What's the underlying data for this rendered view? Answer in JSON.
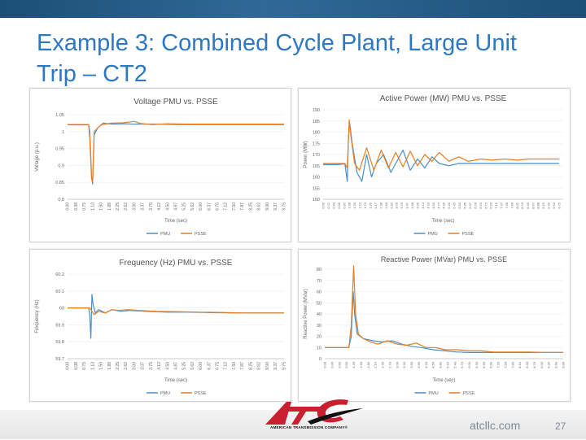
{
  "slide": {
    "title": "Example 3: Combined Cycle Plant, Large Unit Trip – CT2",
    "footer_site": "atcllc.com",
    "page_number": "27",
    "logo_text": "AMERICAN TRANSMISSION COMPANY®"
  },
  "colors": {
    "pmu": "#4a8fc9",
    "psse": "#e67e22",
    "title": "#2e78c2",
    "topbar": "#1c4f78",
    "logo_red": "#c8202f"
  },
  "icons": [
    "atc-logo"
  ],
  "chart_data": [
    {
      "type": "line",
      "title": "Voltage PMU vs. PSSE",
      "xlabel": "Time (sec)",
      "ylabel": "Voltage (p.u.)",
      "ylim": [
        0.8,
        1.05
      ],
      "yticks": [
        "0.8",
        "0.85",
        "0.9",
        "0.95",
        "1",
        "1.05"
      ],
      "xlim": [
        0,
        9.75
      ],
      "xticks": [
        "0.00",
        "0.38",
        "0.75",
        "1.13",
        "1.50",
        "1.88",
        "2.25",
        "2.62",
        "3.00",
        "3.37",
        "3.75",
        "4.12",
        "4.50",
        "4.87",
        "5.25",
        "5.62",
        "6.00",
        "6.37",
        "6.75",
        "7.12",
        "7.50",
        "7.87",
        "8.25",
        "8.62",
        "9.00",
        "9.37",
        "9.75"
      ],
      "legend_position": "bottom",
      "series": [
        {
          "name": "PMU",
          "points": [
            [
              0,
              1.02
            ],
            [
              0.5,
              1.02
            ],
            [
              0.95,
              1.02
            ],
            [
              1.0,
              1.0
            ],
            [
              1.08,
              0.87
            ],
            [
              1.13,
              0.845
            ],
            [
              1.2,
              0.99
            ],
            [
              1.35,
              1.01
            ],
            [
              1.6,
              1.025
            ],
            [
              2.0,
              1.022
            ],
            [
              2.5,
              1.023
            ],
            [
              3.0,
              1.022
            ],
            [
              4,
              1.022
            ],
            [
              5,
              1.021
            ],
            [
              6,
              1.021
            ],
            [
              7,
              1.021
            ],
            [
              8,
              1.021
            ],
            [
              9,
              1.021
            ],
            [
              9.75,
              1.021
            ]
          ]
        },
        {
          "name": "PSSE",
          "points": [
            [
              0,
              1.021
            ],
            [
              0.95,
              1.021
            ],
            [
              1.0,
              0.98
            ],
            [
              1.08,
              0.86
            ],
            [
              1.13,
              0.85
            ],
            [
              1.2,
              1.0
            ],
            [
              1.5,
              1.02
            ],
            [
              2.0,
              1.025
            ],
            [
              2.5,
              1.026
            ],
            [
              3.0,
              1.03
            ],
            [
              3.3,
              1.024
            ],
            [
              3.8,
              1.021
            ],
            [
              4.5,
              1.023
            ],
            [
              5.5,
              1.022
            ],
            [
              6.5,
              1.022
            ],
            [
              7.5,
              1.022
            ],
            [
              8.5,
              1.022
            ],
            [
              9.75,
              1.022
            ]
          ]
        }
      ]
    },
    {
      "type": "line",
      "title": "Active Power (MW) PMU vs. PSSE",
      "xlabel": "Time (sec)",
      "ylabel": "Power (MW)",
      "ylim": [
        150,
        190
      ],
      "yticks": [
        "150",
        "155",
        "160",
        "165",
        "170",
        "175",
        "180",
        "185",
        "190"
      ],
      "xlim": [
        0,
        9.92
      ],
      "xticks": [
        "0.00",
        "0.22",
        "0.43",
        "0.65",
        "0.87",
        "1.08",
        "1.30",
        "1.52",
        "1.73",
        "1.95",
        "2.17",
        "2.38",
        "2.60",
        "2.82",
        "3.03",
        "3.25",
        "3.47",
        "3.68",
        "3.90",
        "4.12",
        "4.33",
        "4.55",
        "4.77",
        "4.98",
        "5.20",
        "5.42",
        "5.63",
        "5.85",
        "6.07",
        "6.28",
        "6.50",
        "6.72",
        "6.93",
        "7.15",
        "7.37",
        "7.58",
        "7.80",
        "8.02",
        "8.23",
        "8.45",
        "8.67",
        "8.88",
        "9.10",
        "9.32",
        "9.53",
        "9.75"
      ],
      "legend_position": "bottom",
      "series": [
        {
          "name": "PMU",
          "points": [
            [
              0,
              165.5
            ],
            [
              0.6,
              165.5
            ],
            [
              0.9,
              165.8
            ],
            [
              1.0,
              158
            ],
            [
              1.05,
              178
            ],
            [
              1.1,
              184
            ],
            [
              1.2,
              175
            ],
            [
              1.4,
              162
            ],
            [
              1.6,
              158
            ],
            [
              1.8,
              170
            ],
            [
              2.0,
              160
            ],
            [
              2.2,
              166
            ],
            [
              2.5,
              170
            ],
            [
              2.8,
              162
            ],
            [
              3.0,
              166
            ],
            [
              3.3,
              172
            ],
            [
              3.6,
              163
            ],
            [
              3.9,
              168
            ],
            [
              4.2,
              164
            ],
            [
              4.5,
              169
            ],
            [
              4.8,
              166
            ],
            [
              5.2,
              165
            ],
            [
              5.6,
              166
            ],
            [
              6,
              166
            ],
            [
              6.5,
              166
            ],
            [
              7,
              166
            ],
            [
              8,
              166
            ],
            [
              9,
              166
            ],
            [
              9.75,
              166
            ]
          ]
        },
        {
          "name": "PSSE",
          "points": [
            [
              0,
              166
            ],
            [
              0.9,
              166
            ],
            [
              1.0,
              164
            ],
            [
              1.08,
              185.5
            ],
            [
              1.15,
              178
            ],
            [
              1.3,
              166
            ],
            [
              1.5,
              163
            ],
            [
              1.8,
              173
            ],
            [
              2.1,
              163
            ],
            [
              2.4,
              172
            ],
            [
              2.7,
              164
            ],
            [
              3.0,
              171
            ],
            [
              3.3,
              164.5
            ],
            [
              3.6,
              171.5
            ],
            [
              3.9,
              165
            ],
            [
              4.2,
              170
            ],
            [
              4.5,
              167
            ],
            [
              4.8,
              171
            ],
            [
              5.2,
              167
            ],
            [
              5.6,
              169
            ],
            [
              6,
              167
            ],
            [
              6.5,
              168
            ],
            [
              7,
              167.5
            ],
            [
              7.5,
              168
            ],
            [
              8,
              167.5
            ],
            [
              8.5,
              168
            ],
            [
              9,
              168
            ],
            [
              9.75,
              168
            ]
          ]
        }
      ]
    },
    {
      "type": "line",
      "title": "Frequency (Hz) PMU vs. PSSE",
      "xlabel": "Time (sec)",
      "ylabel": "Frequency (Hz)",
      "ylim": [
        59.7,
        60.2
      ],
      "yticks": [
        "59.7",
        "59.8",
        "59.9",
        "60",
        "60.1",
        "60.2"
      ],
      "xlim": [
        0,
        9.75
      ],
      "xticks": [
        "0.00",
        "0.38",
        "0.75",
        "1.13",
        "1.50",
        "1.88",
        "2.25",
        "2.62",
        "3.00",
        "3.37",
        "3.75",
        "4.12",
        "4.50",
        "4.87",
        "5.25",
        "5.62",
        "6.00",
        "6.37",
        "6.75",
        "7.12",
        "7.50",
        "7.87",
        "8.25",
        "8.62",
        "9.00",
        "9.37",
        "9.75"
      ],
      "legend_position": "bottom",
      "series": [
        {
          "name": "PMU",
          "points": [
            [
              0,
              60.0
            ],
            [
              0.95,
              60.0
            ],
            [
              1.0,
              59.96
            ],
            [
              1.05,
              59.82
            ],
            [
              1.1,
              60.08
            ],
            [
              1.15,
              60.02
            ],
            [
              1.25,
              59.97
            ],
            [
              1.4,
              59.99
            ],
            [
              1.7,
              59.97
            ],
            [
              2.0,
              59.99
            ],
            [
              2.4,
              59.98
            ],
            [
              2.8,
              59.985
            ],
            [
              3.5,
              59.98
            ],
            [
              4.5,
              59.975
            ],
            [
              5.5,
              59.975
            ],
            [
              6.5,
              59.972
            ],
            [
              7.5,
              59.97
            ],
            [
              8.5,
              59.97
            ],
            [
              9.75,
              59.97
            ]
          ]
        },
        {
          "name": "PSSE",
          "points": [
            [
              0,
              60.0
            ],
            [
              0.95,
              60.0
            ],
            [
              1.0,
              60.0
            ],
            [
              1.1,
              59.98
            ],
            [
              1.2,
              59.96
            ],
            [
              1.4,
              59.98
            ],
            [
              1.7,
              59.97
            ],
            [
              2.0,
              59.99
            ],
            [
              2.3,
              59.985
            ],
            [
              2.7,
              59.99
            ],
            [
              3.2,
              59.985
            ],
            [
              4,
              59.98
            ],
            [
              5,
              59.978
            ],
            [
              6,
              59.975
            ],
            [
              7,
              59.973
            ],
            [
              8,
              59.97
            ],
            [
              9,
              59.97
            ],
            [
              9.75,
              59.97
            ]
          ]
        }
      ]
    },
    {
      "type": "line",
      "title": "Reactive Power (MVar) PMU vs. PSSE",
      "xlabel": "Time (sec)",
      "ylabel": "Reactive Power (MVar)",
      "ylim": [
        0,
        80
      ],
      "yticks": [
        "0",
        "10",
        "20",
        "30",
        "40",
        "50",
        "60",
        "70",
        "80"
      ],
      "xlim": [
        0,
        9.9
      ],
      "xticks": [
        "0.00",
        "0.30",
        "0.60",
        "0.90",
        "1.20",
        "1.50",
        "1.80",
        "2.10",
        "2.40",
        "2.70",
        "3.00",
        "3.30",
        "3.60",
        "3.90",
        "4.20",
        "4.50",
        "4.80",
        "5.10",
        "5.40",
        "5.70",
        "6.00",
        "6.30",
        "6.60",
        "6.90",
        "7.20",
        "7.50",
        "7.80",
        "8.10",
        "8.40",
        "8.70",
        "9.00",
        "9.30",
        "9.60",
        "9.90"
      ],
      "legend_position": "bottom",
      "series": [
        {
          "name": "PMU",
          "points": [
            [
              0,
              10
            ],
            [
              1.0,
              10
            ],
            [
              1.1,
              20
            ],
            [
              1.18,
              60
            ],
            [
              1.25,
              38
            ],
            [
              1.35,
              22
            ],
            [
              1.6,
              18
            ],
            [
              2.0,
              16
            ],
            [
              2.4,
              15
            ],
            [
              2.8,
              16
            ],
            [
              3.2,
              13
            ],
            [
              3.6,
              11
            ],
            [
              4,
              10
            ],
            [
              4.5,
              8
            ],
            [
              5,
              7
            ],
            [
              5.5,
              6
            ],
            [
              6,
              5.5
            ],
            [
              7,
              5.5
            ],
            [
              8,
              5.5
            ],
            [
              9,
              5.5
            ],
            [
              9.9,
              5.5
            ]
          ]
        },
        {
          "name": "PSSE",
          "points": [
            [
              0,
              10
            ],
            [
              1.0,
              10
            ],
            [
              1.1,
              30
            ],
            [
              1.2,
              83
            ],
            [
              1.28,
              40
            ],
            [
              1.4,
              22
            ],
            [
              1.6,
              18
            ],
            [
              1.9,
              15
            ],
            [
              2.2,
              13
            ],
            [
              2.6,
              16
            ],
            [
              3.0,
              13
            ],
            [
              3.4,
              12
            ],
            [
              3.8,
              14
            ],
            [
              4.2,
              10
            ],
            [
              4.6,
              10
            ],
            [
              5.0,
              8
            ],
            [
              5.5,
              8
            ],
            [
              6.0,
              7
            ],
            [
              6.5,
              7
            ],
            [
              7.0,
              6
            ],
            [
              7.5,
              6
            ],
            [
              8,
              6
            ],
            [
              8.5,
              6
            ],
            [
              9,
              5.5
            ],
            [
              9.9,
              5.5
            ]
          ]
        }
      ]
    }
  ]
}
